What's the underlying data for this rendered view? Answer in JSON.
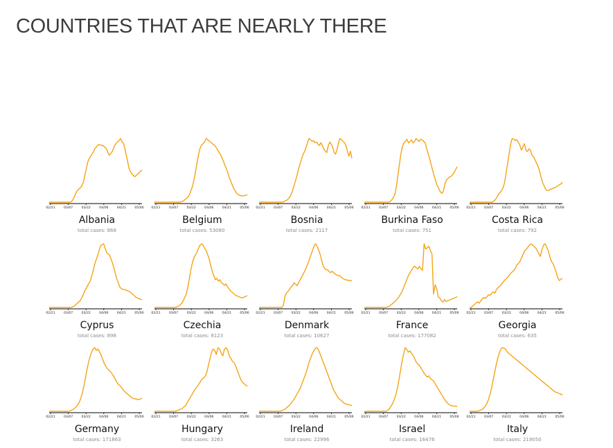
{
  "page": {
    "title": "COUNTRIES THAT ARE NEARLY THERE"
  },
  "colors": {
    "line": "#f5a313",
    "axis": "#000000",
    "text": "#111111",
    "muted": "#8a8a8a"
  },
  "chart_data": {
    "type": "line",
    "x_ticks": [
      "02/21",
      "03/07",
      "03/22",
      "04/06",
      "04/21",
      "05/06"
    ],
    "panels": [
      {
        "country": "Albania",
        "cases_label": "total cases: 868",
        "y": [
          0,
          0,
          0,
          0,
          0,
          0,
          0,
          0,
          0,
          0,
          0,
          0,
          0,
          0,
          0,
          0,
          2,
          5,
          10,
          15,
          18,
          20,
          22,
          25,
          30,
          40,
          50,
          60,
          65,
          68,
          72,
          75,
          80,
          82,
          85,
          86,
          85,
          85,
          84,
          82,
          80,
          75,
          70,
          72,
          75,
          80,
          85,
          88,
          90,
          92,
          95,
          90,
          88,
          80,
          70,
          60,
          50,
          45,
          42,
          40,
          38,
          40,
          42,
          44,
          46,
          48
        ]
      },
      {
        "country": "Belgium",
        "cases_label": "total cases: 53080",
        "y": [
          0,
          0,
          0,
          0,
          0,
          0,
          0,
          0,
          0,
          0,
          0,
          0,
          0,
          0,
          0,
          0,
          0,
          0,
          1,
          2,
          4,
          6,
          8,
          12,
          18,
          25,
          35,
          48,
          62,
          75,
          85,
          90,
          92,
          95,
          100,
          98,
          96,
          94,
          92,
          90,
          88,
          84,
          80,
          76,
          72,
          66,
          60,
          54,
          48,
          40,
          34,
          28,
          22,
          18,
          14,
          12,
          11,
          10,
          10,
          10,
          11,
          12
        ]
      },
      {
        "country": "Bosnia",
        "cases_label": "total cases: 2117",
        "y": [
          0,
          0,
          0,
          0,
          0,
          0,
          0,
          0,
          0,
          0,
          0,
          0,
          0,
          0,
          0,
          0,
          0,
          1,
          2,
          3,
          5,
          8,
          12,
          18,
          25,
          32,
          40,
          48,
          55,
          62,
          68,
          72,
          78,
          85,
          90,
          88,
          86,
          87,
          84,
          85,
          82,
          80,
          84,
          80,
          75,
          72,
          70,
          80,
          85,
          82,
          78,
          70,
          68,
          75,
          85,
          90,
          88,
          86,
          84,
          80,
          72,
          65,
          72,
          62
        ]
      },
      {
        "country": "Burkina Faso",
        "cases_label": "total cases: 751",
        "y": [
          0,
          0,
          0,
          0,
          0,
          0,
          0,
          0,
          0,
          0,
          0,
          0,
          0,
          0,
          0,
          0,
          0,
          1,
          3,
          6,
          10,
          20,
          35,
          50,
          65,
          75,
          80,
          82,
          85,
          80,
          82,
          84,
          80,
          82,
          86,
          84,
          82,
          85,
          84,
          82,
          80,
          72,
          65,
          58,
          50,
          42,
          35,
          28,
          22,
          18,
          14,
          12,
          15,
          25,
          30,
          32,
          34,
          35,
          37,
          40,
          44,
          48
        ]
      },
      {
        "country": "Costa Rica",
        "cases_label": "total cases: 792",
        "y": [
          0,
          0,
          0,
          0,
          0,
          0,
          0,
          0,
          0,
          0,
          0,
          0,
          0,
          0,
          0,
          0,
          2,
          4,
          8,
          12,
          15,
          18,
          22,
          30,
          45,
          60,
          75,
          90,
          98,
          97,
          95,
          96,
          92,
          88,
          80,
          85,
          90,
          80,
          78,
          82,
          80,
          72,
          70,
          65,
          60,
          55,
          48,
          38,
          30,
          25,
          20,
          18,
          18,
          20,
          20,
          22,
          22,
          24,
          25,
          27,
          28,
          31
        ]
      },
      {
        "country": "Cyprus",
        "cases_label": "total cases: 898",
        "y": [
          0,
          0,
          0,
          0,
          0,
          0,
          0,
          0,
          0,
          0,
          0,
          0,
          0,
          0,
          0,
          0,
          1,
          2,
          4,
          6,
          8,
          10,
          14,
          18,
          24,
          28,
          32,
          36,
          40,
          48,
          56,
          65,
          72,
          78,
          86,
          92,
          94,
          95,
          88,
          82,
          80,
          78,
          72,
          66,
          58,
          50,
          42,
          36,
          30,
          28,
          27,
          27,
          26,
          25,
          24,
          23,
          21,
          19,
          17,
          15,
          14,
          13,
          12,
          12
        ]
      },
      {
        "country": "Czechia",
        "cases_label": "total cases: 8123",
        "y": [
          0,
          0,
          0,
          0,
          0,
          0,
          0,
          0,
          0,
          0,
          0,
          0,
          0,
          0,
          0,
          1,
          2,
          4,
          6,
          10,
          15,
          20,
          30,
          42,
          55,
          65,
          72,
          76,
          80,
          86,
          90,
          92,
          90,
          85,
          82,
          76,
          70,
          60,
          52,
          46,
          40,
          42,
          38,
          40,
          36,
          34,
          32,
          34,
          30,
          27,
          24,
          22,
          20,
          18,
          17,
          16,
          15,
          14,
          14,
          15,
          16,
          17
        ]
      },
      {
        "country": "Denmark",
        "cases_label": "total cases: 10627",
        "y": [
          0,
          0,
          0,
          0,
          0,
          0,
          0,
          0,
          0,
          0,
          0,
          0,
          0,
          0,
          0,
          0,
          3,
          15,
          20,
          22,
          25,
          28,
          30,
          34,
          32,
          30,
          34,
          38,
          42,
          46,
          50,
          55,
          60,
          66,
          72,
          78,
          84,
          88,
          85,
          80,
          74,
          66,
          58,
          54,
          52,
          52,
          50,
          48,
          50,
          48,
          46,
          45,
          44,
          44,
          42,
          40,
          39,
          38,
          38,
          37,
          37,
          37
        ]
      },
      {
        "country": "France",
        "cases_label": "total cases: 177082",
        "y": [
          0,
          0,
          0,
          0,
          0,
          0,
          0,
          0,
          0,
          0,
          0,
          0,
          0,
          0,
          0,
          1,
          2,
          4,
          6,
          8,
          10,
          13,
          16,
          20,
          24,
          30,
          36,
          42,
          48,
          52,
          56,
          60,
          62,
          60,
          58,
          62,
          58,
          56,
          96,
          88,
          90,
          92,
          86,
          80,
          20,
          34,
          28,
          16,
          14,
          10,
          8,
          12,
          9,
          10,
          11,
          12,
          13,
          14,
          15,
          16
        ]
      },
      {
        "country": "Georgia",
        "cases_label": "total cases: 635",
        "y": [
          0,
          0,
          2,
          4,
          6,
          8,
          6,
          9,
          12,
          14,
          13,
          15,
          18,
          17,
          20,
          22,
          20,
          25,
          28,
          30,
          32,
          35,
          38,
          40,
          42,
          45,
          48,
          50,
          52,
          55,
          60,
          62,
          65,
          70,
          75,
          80,
          82,
          85,
          88,
          90,
          88,
          86,
          84,
          80,
          76,
          72,
          82,
          88,
          90,
          85,
          80,
          72,
          65,
          62,
          56,
          50,
          42,
          38,
          40,
          41
        ]
      },
      {
        "country": "Germany",
        "cases_label": "total cases: 171863",
        "y": [
          0,
          0,
          0,
          0,
          0,
          0,
          0,
          0,
          0,
          0,
          0,
          0,
          0,
          0,
          1,
          2,
          3,
          5,
          7,
          10,
          14,
          20,
          28,
          38,
          50,
          62,
          72,
          80,
          86,
          90,
          92,
          88,
          90,
          86,
          82,
          76,
          70,
          66,
          62,
          60,
          58,
          55,
          52,
          48,
          44,
          40,
          38,
          36,
          33,
          30,
          28,
          26,
          24,
          22,
          20,
          19,
          18,
          18,
          17,
          17,
          18,
          19
        ]
      },
      {
        "country": "Hungary",
        "cases_label": "total cases: 3263",
        "y": [
          0,
          0,
          0,
          0,
          0,
          0,
          0,
          0,
          0,
          0,
          0,
          0,
          0,
          0,
          1,
          2,
          3,
          4,
          6,
          8,
          12,
          16,
          20,
          24,
          28,
          32,
          35,
          38,
          42,
          46,
          48,
          50,
          55,
          65,
          75,
          85,
          90,
          88,
          82,
          92,
          90,
          84,
          80,
          90,
          92,
          88,
          80,
          76,
          72,
          70,
          65,
          58,
          52,
          46,
          42,
          40,
          38,
          36
        ]
      },
      {
        "country": "Ireland",
        "cases_label": "total cases: 22996",
        "y": [
          0,
          0,
          0,
          0,
          0,
          0,
          0,
          0,
          0,
          0,
          0,
          0,
          0,
          0,
          0,
          1,
          2,
          3,
          5,
          7,
          9,
          12,
          15,
          18,
          22,
          26,
          30,
          34,
          40,
          46,
          52,
          58,
          66,
          74,
          80,
          86,
          90,
          94,
          95,
          92,
          86,
          80,
          74,
          68,
          62,
          56,
          50,
          44,
          38,
          32,
          28,
          24,
          20,
          18,
          16,
          14,
          12,
          11,
          10,
          10,
          9,
          9
        ]
      },
      {
        "country": "Israel",
        "cases_label": "total cases: 16476",
        "y": [
          0,
          0,
          0,
          0,
          0,
          0,
          0,
          0,
          0,
          0,
          0,
          0,
          0,
          0,
          0,
          2,
          4,
          8,
          12,
          18,
          25,
          35,
          48,
          62,
          76,
          88,
          97,
          94,
          90,
          92,
          88,
          85,
          80,
          75,
          72,
          70,
          66,
          62,
          58,
          55,
          52,
          54,
          50,
          48,
          46,
          42,
          38,
          34,
          30,
          26,
          22,
          18,
          15,
          12,
          10,
          9,
          8,
          8,
          8,
          7
        ]
      },
      {
        "country": "Italy",
        "cases_label": "total cases: 219050",
        "y": [
          0,
          0,
          0,
          0,
          0,
          0,
          1,
          2,
          3,
          5,
          8,
          12,
          18,
          26,
          36,
          48,
          60,
          72,
          82,
          90,
          95,
          97,
          96,
          94,
          90,
          88,
          86,
          84,
          82,
          80,
          78,
          76,
          74,
          72,
          70,
          68,
          66,
          64,
          62,
          60,
          58,
          56,
          54,
          52,
          50,
          48,
          46,
          44,
          42,
          40,
          38,
          36,
          34,
          32,
          30,
          29,
          28,
          27,
          26,
          25
        ]
      }
    ]
  }
}
